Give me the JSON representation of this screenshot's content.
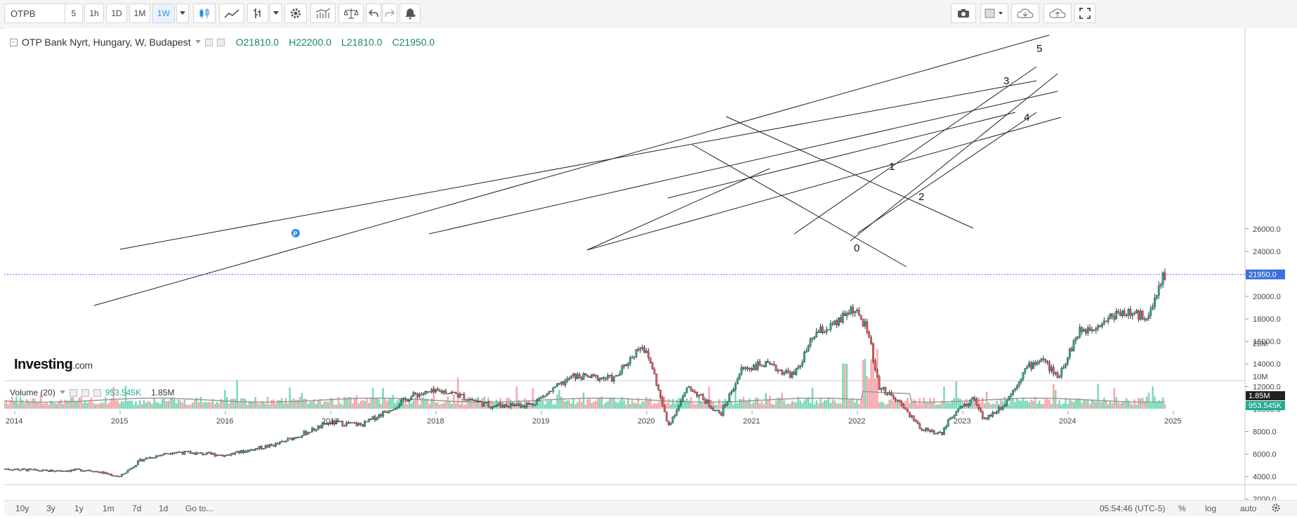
{
  "toolbar": {
    "symbol": "OTPB",
    "intervals": [
      "5",
      "1h",
      "1D",
      "1M",
      "1W"
    ],
    "active_interval": "1W"
  },
  "legend": {
    "title": "OTP Bank Nyrt, Hungary, W, Budapest",
    "open": "O21810.0",
    "high": "H22200.0",
    "low": "L21810.0",
    "close": "C21950.0"
  },
  "volume_legend": {
    "label": "Volume (20)",
    "value1": "953.545K",
    "value2": "1.85M"
  },
  "logo": {
    "main": "Investing",
    "suffix": ".com"
  },
  "price_axis": {
    "ticks": [
      "26000.0",
      "24000.0",
      "22000.0",
      "20000.0",
      "18000.0",
      "16000.0",
      "14000.0",
      "12000.0",
      "10000.0",
      "8000.0",
      "6000.0",
      "4000.0",
      "2000.0"
    ],
    "last_price": "21950.0"
  },
  "volume_axis": {
    "ticks": [
      "20M",
      "10M"
    ],
    "ma_label": "1.85M",
    "vol_label": "953.545K"
  },
  "time_axis": [
    "2014",
    "2015",
    "2016",
    "2017",
    "2018",
    "2019",
    "2020",
    "2021",
    "2022",
    "2023",
    "2024",
    "2025"
  ],
  "wave_labels": [
    "0",
    "1",
    "2",
    "3",
    "4",
    "5"
  ],
  "bottombar": {
    "ranges": [
      "10y",
      "3y",
      "1y",
      "1m",
      "7d",
      "1d"
    ],
    "goto": "Go to...",
    "time": "05:54:46 (UTC-5)",
    "percent": "%",
    "log": "log",
    "auto": "auto"
  },
  "colors": {
    "up": "#22ab94",
    "down": "#f7525f",
    "accent": "#2e8ee8",
    "last_price_bg": "#3d6fe0"
  },
  "chart_data": {
    "type": "line",
    "title": "OTP Bank Nyrt, Hungary, W, Budapest",
    "x": [
      "2013.9",
      "2014.3",
      "2014.7",
      "2015.0",
      "2015.2",
      "2015.5",
      "2016.0",
      "2016.5",
      "2017.0",
      "2017.3",
      "2017.8",
      "2018.1",
      "2018.5",
      "2018.9",
      "2019.3",
      "2019.7",
      "2019.95",
      "2020.05",
      "2020.2",
      "2020.4",
      "2020.7",
      "2020.9",
      "2021.1",
      "2021.4",
      "2021.6",
      "2021.8",
      "2021.95",
      "2022.1",
      "2022.2",
      "2022.4",
      "2022.6",
      "2022.8",
      "2022.9",
      "2023.1",
      "2023.2",
      "2023.4",
      "2023.6",
      "2023.75",
      "2023.9",
      "2024.1",
      "2024.3",
      "2024.5",
      "2024.7",
      "2024.8",
      "2024.9"
    ],
    "values": [
      4700,
      4500,
      4600,
      4000,
      5500,
      6200,
      5900,
      6900,
      8800,
      8600,
      11300,
      11600,
      10300,
      10400,
      12900,
      12700,
      15800,
      13800,
      8500,
      12000,
      9500,
      13500,
      14000,
      13000,
      16700,
      17500,
      19000,
      17000,
      12000,
      10500,
      8300,
      7800,
      9500,
      11000,
      9000,
      10500,
      13600,
      14500,
      12800,
      16800,
      17600,
      18700,
      18200,
      18800,
      21950
    ],
    "ylim": [
      2000,
      27000
    ],
    "volume_axis_ticks": [
      "10M",
      "20M"
    ]
  }
}
